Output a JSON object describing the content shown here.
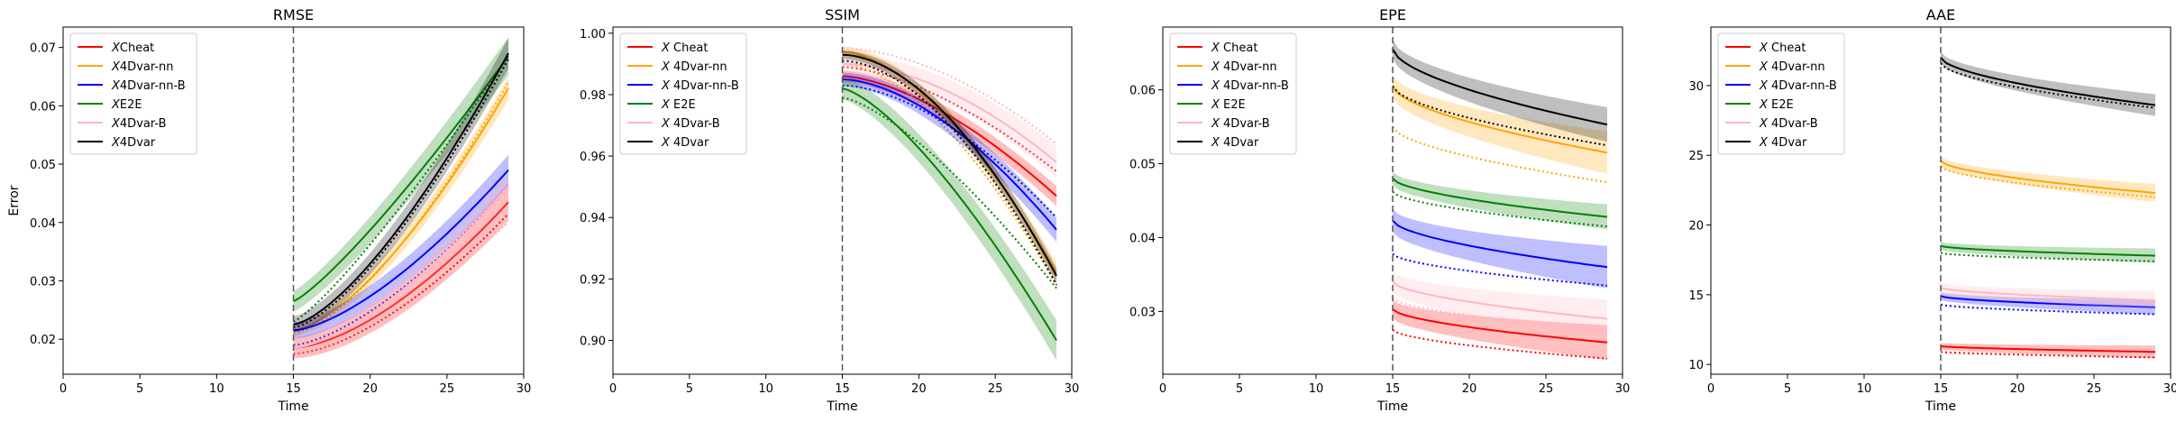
{
  "chart_data": [
    {
      "type": "line",
      "title": "RMSE",
      "xlabel": "Time",
      "ylabel": "Error",
      "xlim": [
        0,
        30
      ],
      "ylim": [
        0.014,
        0.0735
      ],
      "xticks": [
        0,
        5,
        10,
        15,
        20,
        25,
        30
      ],
      "yticks": [
        0.02,
        0.03,
        0.04,
        0.05,
        0.06,
        0.07
      ],
      "ytick_labels": [
        "0.02",
        "0.03",
        "0.04",
        "0.05",
        "0.06",
        "0.07"
      ],
      "vline": 15,
      "legend": "top-left",
      "series": [
        {
          "name": "XCheat",
          "color": "#ff0000",
          "x": [
            15,
            29
          ],
          "start": 0.0185,
          "end": 0.0435,
          "curve": 1.6,
          "band": 0.0025,
          "dotted_start": 0.0175,
          "dotted_end": 0.0415
        },
        {
          "name": "X4Dvar-nn",
          "color": "#ffa500",
          "x": [
            15,
            29
          ],
          "start": 0.0215,
          "end": 0.063,
          "curve": 1.5,
          "band": 0.0015,
          "dotted_start": 0.021,
          "dotted_end": 0.064
        },
        {
          "name": "X4Dvar-nn-B",
          "color": "#0000ff",
          "x": [
            15,
            29
          ],
          "start": 0.0215,
          "end": 0.049,
          "curve": 1.5,
          "band": 0.002,
          "dotted_start": 0.019,
          "dotted_end": 0.046
        },
        {
          "name": "XE2E",
          "color": "#008000",
          "x": [
            15,
            29
          ],
          "start": 0.0265,
          "end": 0.0685,
          "curve": 1.2,
          "band": 0.0025,
          "dotted_start": 0.023,
          "dotted_end": 0.0685
        },
        {
          "name": "X4Dvar-B",
          "color": "#ffb6c1",
          "x": [
            15,
            29
          ],
          "start": 0.0185,
          "end": 0.046,
          "curve": 1.5,
          "band": 0.002,
          "dotted_start": 0.017,
          "dotted_end": 0.04
        },
        {
          "name": "X4Dvar",
          "color": "#000000",
          "x": [
            15,
            29
          ],
          "start": 0.0225,
          "end": 0.069,
          "curve": 1.45,
          "band": 0.002,
          "dotted_start": 0.022,
          "dotted_end": 0.068
        }
      ]
    },
    {
      "type": "line",
      "title": "SSIM",
      "xlabel": "Time",
      "ylabel": "",
      "xlim": [
        0,
        30
      ],
      "ylim": [
        0.889,
        1.002
      ],
      "xticks": [
        0,
        5,
        10,
        15,
        20,
        25,
        30
      ],
      "yticks": [
        0.9,
        0.92,
        0.94,
        0.96,
        0.98,
        1.0
      ],
      "ytick_labels": [
        "0.90",
        "0.92",
        "0.94",
        "0.96",
        "0.98",
        "1.00"
      ],
      "vline": 15,
      "legend": "top-left",
      "series": [
        {
          "name": "X Cheat",
          "color": "#ff0000",
          "x": [
            15,
            29
          ],
          "start": 0.986,
          "end": 0.947,
          "curve": 1.6,
          "band": 0.0025,
          "dotted_start": 0.989,
          "dotted_end": 0.955
        },
        {
          "name": "X 4Dvar-nn",
          "color": "#ffa500",
          "x": [
            15,
            29
          ],
          "start": 0.994,
          "end": 0.922,
          "curve": 1.7,
          "band": 0.0025,
          "dotted_start": 0.99,
          "dotted_end": 0.918
        },
        {
          "name": "X 4Dvar-nn-B",
          "color": "#0000ff",
          "x": [
            15,
            29
          ],
          "start": 0.985,
          "end": 0.936,
          "curve": 1.7,
          "band": 0.003,
          "dotted_start": 0.983,
          "dotted_end": 0.94
        },
        {
          "name": "X E2E",
          "color": "#008000",
          "x": [
            15,
            29
          ],
          "start": 0.982,
          "end": 0.9,
          "curve": 1.4,
          "band": 0.005,
          "dotted_start": 0.979,
          "dotted_end": 0.917
        },
        {
          "name": "X 4Dvar-B",
          "color": "#ffb6c1",
          "x": [
            15,
            29
          ],
          "start": 0.99,
          "end": 0.958,
          "curve": 1.8,
          "band": 0.004,
          "dotted_start": 0.995,
          "dotted_end": 0.964
        },
        {
          "name": "X 4Dvar",
          "color": "#000000",
          "x": [
            15,
            29
          ],
          "start": 0.993,
          "end": 0.921,
          "curve": 1.8,
          "band": 0.002,
          "dotted_start": 0.991,
          "dotted_end": 0.918
        }
      ]
    },
    {
      "type": "line",
      "title": "EPE",
      "xlabel": "Time",
      "ylabel": "",
      "xlim": [
        0,
        30
      ],
      "ylim": [
        0.0215,
        0.0685
      ],
      "xticks": [
        0,
        5,
        10,
        15,
        20,
        25,
        30
      ],
      "yticks": [
        0.03,
        0.04,
        0.05,
        0.06
      ],
      "ytick_labels": [
        "0.03",
        "0.04",
        "0.05",
        "0.06"
      ],
      "vline": 15,
      "legend": "top-left",
      "series": [
        {
          "name": "X Cheat",
          "color": "#ff0000",
          "x": [
            15,
            29
          ],
          "start": 0.0303,
          "end": 0.0258,
          "curve": 0.6,
          "band": 0.0018,
          "dotted_start": 0.0275,
          "dotted_end": 0.0236
        },
        {
          "name": "X 4Dvar-nn",
          "color": "#ffa500",
          "x": [
            15,
            29
          ],
          "start": 0.0605,
          "end": 0.0515,
          "curve": 0.6,
          "band": 0.0022,
          "dotted_start": 0.055,
          "dotted_end": 0.0475
        },
        {
          "name": "X 4Dvar-nn-B",
          "color": "#0000ff",
          "x": [
            15,
            29
          ],
          "start": 0.0423,
          "end": 0.036,
          "curve": 0.6,
          "band": 0.0022,
          "dotted_start": 0.0378,
          "dotted_end": 0.0335
        },
        {
          "name": "X E2E",
          "color": "#008000",
          "x": [
            15,
            29
          ],
          "start": 0.048,
          "end": 0.0428,
          "curve": 0.6,
          "band": 0.0013,
          "dotted_start": 0.0462,
          "dotted_end": 0.0415
        },
        {
          "name": "X 4Dvar-B",
          "color": "#ffb6c1",
          "x": [
            15,
            29
          ],
          "start": 0.034,
          "end": 0.029,
          "curve": 0.6,
          "band": 0.002,
          "dotted_start": 0.0318,
          "dotted_end": 0.0275
        },
        {
          "name": "X 4Dvar",
          "color": "#000000",
          "x": [
            15,
            29
          ],
          "start": 0.0655,
          "end": 0.0553,
          "curve": 0.6,
          "band": 0.0018,
          "dotted_start": 0.0605,
          "dotted_end": 0.0525
        }
      ]
    },
    {
      "type": "line",
      "title": "AAE",
      "xlabel": "Time",
      "ylabel": "",
      "xlim": [
        0,
        30
      ],
      "ylim": [
        9.3,
        34.2
      ],
      "xticks": [
        0,
        5,
        10,
        15,
        20,
        25,
        30
      ],
      "yticks": [
        10,
        15,
        20,
        25,
        30
      ],
      "ytick_labels": [
        "10",
        "15",
        "20",
        "25",
        "30"
      ],
      "vline": 15,
      "legend": "top-left",
      "series": [
        {
          "name": "X Cheat",
          "color": "#ff0000",
          "x": [
            15,
            29
          ],
          "start": 11.3,
          "end": 10.9,
          "curve": 0.7,
          "band": 0.35,
          "dotted_start": 10.9,
          "dotted_end": 10.5
        },
        {
          "name": "X 4Dvar-nn",
          "color": "#ffa500",
          "x": [
            15,
            29
          ],
          "start": 24.6,
          "end": 22.3,
          "curve": 0.6,
          "band": 0.5,
          "dotted_start": 24.2,
          "dotted_end": 22.0
        },
        {
          "name": "X 4Dvar-nn-B",
          "color": "#0000ff",
          "x": [
            15,
            29
          ],
          "start": 14.9,
          "end": 14.1,
          "curve": 0.6,
          "band": 0.4,
          "dotted_start": 14.3,
          "dotted_end": 13.6
        },
        {
          "name": "X E2E",
          "color": "#008000",
          "x": [
            15,
            29
          ],
          "start": 18.5,
          "end": 17.8,
          "curve": 0.6,
          "band": 0.4,
          "dotted_start": 18.0,
          "dotted_end": 17.4
        },
        {
          "name": "X 4Dvar-B",
          "color": "#ffb6c1",
          "x": [
            15,
            29
          ],
          "start": 15.5,
          "end": 14.6,
          "curve": 0.6,
          "band": 0.5,
          "dotted_start": 15.1,
          "dotted_end": 14.4
        },
        {
          "name": "X 4Dvar",
          "color": "#000000",
          "x": [
            15,
            29
          ],
          "start": 32.0,
          "end": 28.6,
          "curve": 0.6,
          "band": 0.6,
          "dotted_start": 31.6,
          "dotted_end": 28.4
        }
      ]
    }
  ]
}
